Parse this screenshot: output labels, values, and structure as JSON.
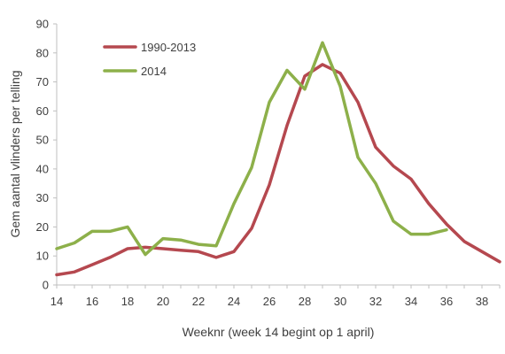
{
  "chart_data": {
    "type": "line",
    "xlabel": "Weeknr  (week  14 begint op 1 april)",
    "ylabel": "Gem  aantal vlinders per telling",
    "xlim": [
      14,
      39
    ],
    "ylim": [
      0,
      90
    ],
    "xticks": [
      14,
      16,
      18,
      20,
      22,
      24,
      26,
      28,
      30,
      32,
      34,
      36,
      38
    ],
    "yticks": [
      0,
      10,
      20,
      30,
      40,
      50,
      60,
      70,
      80,
      90
    ],
    "grid": false,
    "legend_position": "top-left",
    "series": [
      {
        "name": "1990-2013",
        "color": "#B5484F",
        "x": [
          14,
          15,
          16,
          17,
          18,
          19,
          20,
          21,
          22,
          23,
          24,
          25,
          26,
          27,
          28,
          29,
          30,
          31,
          32,
          33,
          34,
          35,
          36,
          37,
          38,
          39
        ],
        "y": [
          3.5,
          4.5,
          7,
          9.5,
          12.5,
          13,
          12.5,
          12,
          11.5,
          9.5,
          11.5,
          19.5,
          34.5,
          55,
          72,
          76,
          73,
          63,
          47.5,
          41,
          36.5,
          28,
          21,
          15,
          11.5,
          8
        ]
      },
      {
        "name": "2014",
        "color": "#8DB04A",
        "x": [
          14,
          15,
          16,
          17,
          18,
          19,
          20,
          21,
          22,
          23,
          24,
          25,
          26,
          27,
          28,
          29,
          30,
          31,
          32,
          33,
          34,
          35,
          36
        ],
        "y": [
          12.5,
          14.5,
          18.5,
          18.5,
          20,
          10.5,
          16,
          15.5,
          14,
          13.5,
          28,
          40.5,
          63,
          74,
          67.5,
          83.5,
          68.5,
          44,
          35,
          22,
          17.5,
          17.5,
          19
        ]
      }
    ]
  }
}
